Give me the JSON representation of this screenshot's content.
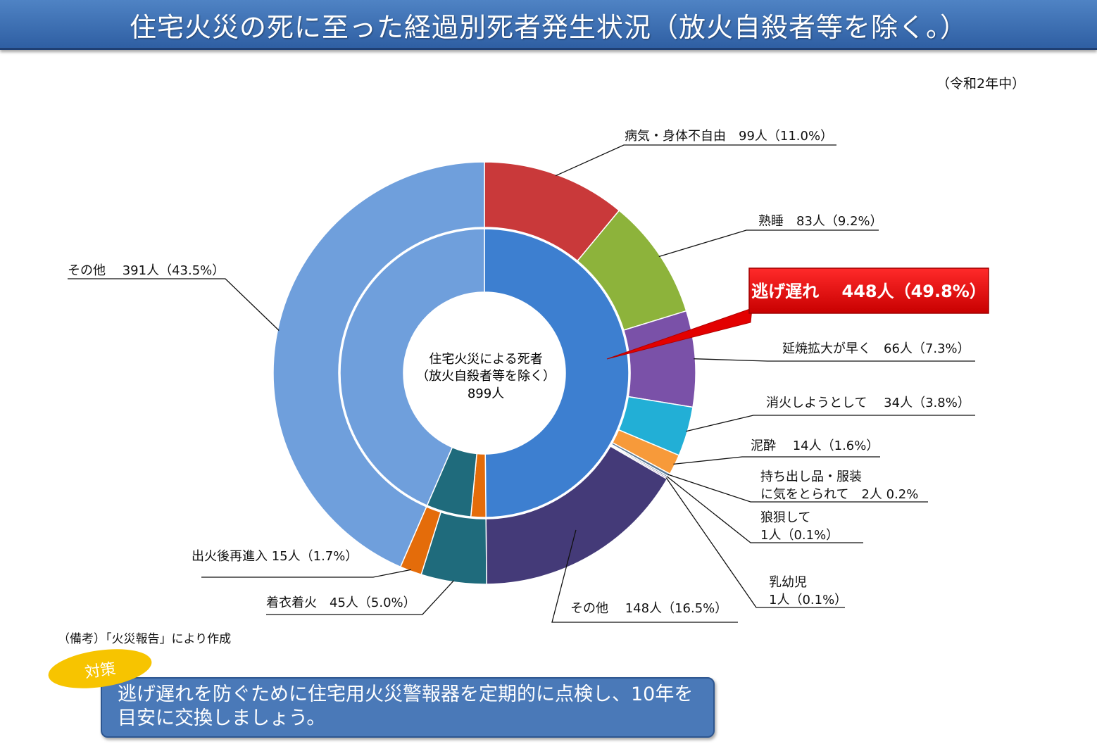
{
  "header": {
    "title": "住宅火災の死に至った経過別死者発生状況（放火自殺者等を除く。）"
  },
  "period": "（令和2年中）",
  "chart_data": {
    "type": "pie",
    "subtype": "double-donut",
    "title": "住宅火災の死に至った経過別死者発生状況（放火自殺者等を除く。）",
    "center_label": [
      "住宅火災による死者",
      "（放火自殺者等を除く）",
      "899人"
    ],
    "total": 899,
    "inner_ring": [
      {
        "name": "逃げ遅れ",
        "value": 448,
        "label": "逃げ遅れ　 448人（49.8%）",
        "color": "#3d7fd0"
      },
      {
        "name": "出火後再進入",
        "value": 15,
        "label": "出火後再進入 15人（1.7%）",
        "color": "#e46c0a"
      },
      {
        "name": "着衣着火",
        "value": 45,
        "label": "着衣着火　45人（5.0%）",
        "color": "#1f6b7c"
      },
      {
        "name": "その他",
        "value": 391,
        "label": "その他　 391人（43.5%）",
        "color": "#6f9fdc"
      }
    ],
    "outer_ring": [
      {
        "name": "病気・身体不自由",
        "value": 99,
        "label": "病気・身体不自由　99人（11.0%）",
        "color": "#c9393a"
      },
      {
        "name": "熟睡",
        "value": 83,
        "label": "熟睡　83人（9.2%）",
        "color": "#8db33b"
      },
      {
        "name": "延焼拡大が早く",
        "value": 66,
        "label": "延焼拡大が早く　66人（7.3%）",
        "color": "#7a51a8"
      },
      {
        "name": "消火しようとして",
        "value": 34,
        "label": "消火しようとして　 34人（3.8%）",
        "color": "#22afd6"
      },
      {
        "name": "泥酔",
        "value": 14,
        "label": "泥酔　 14人（1.6%）",
        "color": "#f79a3a"
      },
      {
        "name": "持ち出し品・服装に気をとられて",
        "value": 2,
        "label": [
          "持ち出し品・服装",
          "に気をとられて　2人 0.2%"
        ],
        "color": "#5c7a96"
      },
      {
        "name": "狼狽して",
        "value": 1,
        "label": [
          "狼狽して",
          "1人（0.1%）"
        ],
        "color": "#2a4d72"
      },
      {
        "name": "乳幼児",
        "value": 1,
        "label": [
          "乳幼児",
          "1人（0.1%）"
        ],
        "color": "#8e5a9e"
      },
      {
        "name": "その他",
        "value": 148,
        "label": "その他　 148人（16.5%）",
        "color": "#443a78"
      },
      {
        "name": "着衣着火",
        "value": 45,
        "label": "着衣着火　45人（5.0%）",
        "color": "#1f6b7c"
      },
      {
        "name": "出火後再進入",
        "value": 15,
        "label": "出火後再進入 15人（1.7%）",
        "color": "#e46c0a"
      },
      {
        "name": "その他",
        "value": 391,
        "label": "その他　 391人（43.5%）",
        "color": "#6f9fdc"
      }
    ]
  },
  "note": "（備考）「火災報告」により作成",
  "countermeasure": {
    "badge": "対策",
    "text": "逃げ遅れを防ぐために住宅用火災警報器を定期的に点検し、10年を目安に交換しましょう。"
  }
}
